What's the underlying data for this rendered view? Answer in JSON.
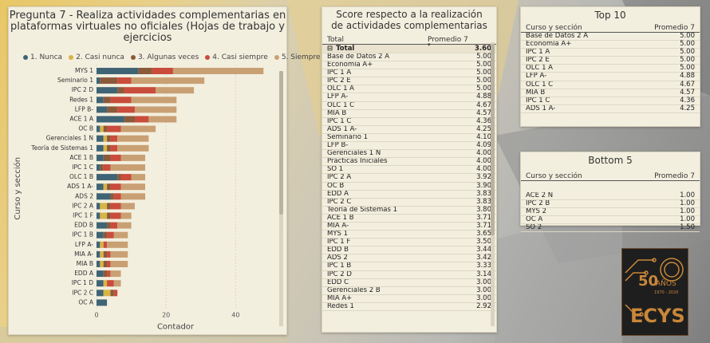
{
  "chart_data": {
    "type": "bar",
    "title": "Pregunta 7 - Realiza actividades complementarias en plataformas virtuales no oficiales (Hojas de trabajo y ejercicios",
    "xlabel": "Contador",
    "ylabel": "Curso y sección",
    "xticks": [
      "0",
      "20",
      "40"
    ],
    "xlim": [
      0,
      50
    ],
    "stacked": true,
    "legend_position": "top",
    "categories": [
      "MYS 1",
      "Seminario 1",
      "IPC 2 D",
      "Redes 1",
      "LFP B-",
      "ACE 1 A",
      "OC B",
      "Gerenciales 1 N",
      "Teoría de Sistemas 1",
      "ACE 1 B",
      "IPC 1 C",
      "OLC 1 B",
      "ADS 1 A-",
      "ADS 2",
      "IPC 2 A",
      "IPC 1 F",
      "EDD B",
      "IPC 1 B",
      "LFP A-",
      "MIA A-",
      "MIA B",
      "EDD A",
      "IPC 1 D",
      "IPC 2 C",
      "OC A"
    ],
    "series": [
      {
        "name": "1. Nunca",
        "color": "#3f6475",
        "values": [
          12,
          1,
          6,
          2,
          3,
          8,
          1,
          2,
          2,
          2,
          1,
          6,
          2,
          4,
          1,
          1,
          3,
          2,
          1,
          1,
          1,
          2,
          2,
          2,
          3
        ]
      },
      {
        "name": "2. Casi nunca",
        "color": "#d8b445",
        "values": [
          0,
          0,
          0,
          0,
          0,
          0,
          1,
          1,
          1,
          0,
          0,
          0,
          1,
          0,
          2,
          2,
          0,
          0,
          1,
          1,
          1,
          0,
          1,
          2,
          0
        ]
      },
      {
        "name": "3. Algunas veces",
        "color": "#8a5a3a",
        "values": [
          4,
          5,
          2,
          2,
          3,
          3,
          1,
          1,
          1,
          2,
          1,
          1,
          1,
          1,
          1,
          1,
          1,
          1,
          0,
          1,
          1,
          1,
          0,
          1,
          0
        ]
      },
      {
        "name": "4. Casi siempre",
        "color": "#c94c3c",
        "values": [
          6,
          4,
          9,
          6,
          5,
          4,
          4,
          2,
          2,
          3,
          2,
          3,
          3,
          2,
          3,
          3,
          2,
          2,
          1,
          1,
          1,
          1,
          2,
          1,
          0
        ]
      },
      {
        "name": "5. Siempre",
        "color": "#c9a074",
        "values": [
          26,
          21,
          11,
          13,
          12,
          8,
          10,
          9,
          9,
          7,
          10,
          4,
          7,
          7,
          4,
          3,
          4,
          4,
          6,
          5,
          5,
          3,
          2,
          0,
          0
        ]
      }
    ]
  },
  "table_main": {
    "title": "Score respecto a la realización de actividades complementarias",
    "col1": "Total",
    "col2": "Promedio 7",
    "sort_icon": "▾",
    "collapse_icon": "⊟",
    "total_label": "Total",
    "total_value": "3.60",
    "rows": [
      {
        "name": "Base de Datos 2 A",
        "value": "5.00"
      },
      {
        "name": "Economía A+",
        "value": "5.00"
      },
      {
        "name": "IPC 1 A",
        "value": "5.00"
      },
      {
        "name": "IPC 2 E",
        "value": "5.00"
      },
      {
        "name": "OLC 1 A",
        "value": "5.00"
      },
      {
        "name": "LFP A-",
        "value": "4.88"
      },
      {
        "name": "OLC 1 C",
        "value": "4.67"
      },
      {
        "name": "MIA B",
        "value": "4.57"
      },
      {
        "name": "IPC 1 C",
        "value": "4.36"
      },
      {
        "name": "ADS 1 A-",
        "value": "4.25"
      },
      {
        "name": "Seminario 1",
        "value": "4.10"
      },
      {
        "name": "LFP B-",
        "value": "4.09"
      },
      {
        "name": "Gerenciales 1 N",
        "value": "4.00"
      },
      {
        "name": "Prácticas Iniciales",
        "value": "4.00"
      },
      {
        "name": "SO 1",
        "value": "4.00"
      },
      {
        "name": "IPC 2 A",
        "value": "3.92"
      },
      {
        "name": "OC B",
        "value": "3.90"
      },
      {
        "name": "EDD A",
        "value": "3.83"
      },
      {
        "name": "IPC 2 C",
        "value": "3.83"
      },
      {
        "name": "Teoría de Sistemas 1",
        "value": "3.80"
      },
      {
        "name": "ACE 1 B",
        "value": "3.71"
      },
      {
        "name": "MIA A-",
        "value": "3.71"
      },
      {
        "name": "MYS 1",
        "value": "3.65"
      },
      {
        "name": "IPC 1 F",
        "value": "3.50"
      },
      {
        "name": "EDD B",
        "value": "3.44"
      },
      {
        "name": "ADS 2",
        "value": "3.42"
      },
      {
        "name": "IPC 1 B",
        "value": "3.33"
      },
      {
        "name": "IPC 2 D",
        "value": "3.14"
      },
      {
        "name": "EDD C",
        "value": "3.00"
      },
      {
        "name": "Gerenciales 2 B",
        "value": "3.00"
      },
      {
        "name": "MIA A+",
        "value": "3.00"
      },
      {
        "name": "Redes 1",
        "value": "2.92"
      }
    ]
  },
  "top10": {
    "title": "Top 10",
    "col1": "Curso y sección",
    "col2": "Promedio 7",
    "rows": [
      {
        "name": "Base de Datos 2 A",
        "value": "5.00"
      },
      {
        "name": "Economía A+",
        "value": "5.00"
      },
      {
        "name": "IPC 1 A",
        "value": "5.00"
      },
      {
        "name": "IPC 2 E",
        "value": "5.00"
      },
      {
        "name": "OLC 1 A",
        "value": "5.00"
      },
      {
        "name": "LFP A-",
        "value": "4.88"
      },
      {
        "name": "OLC 1 C",
        "value": "4.67"
      },
      {
        "name": "MIA B",
        "value": "4.57"
      },
      {
        "name": "IPC 1 C",
        "value": "4.36"
      },
      {
        "name": "ADS 1 A-",
        "value": "4.25"
      }
    ]
  },
  "bottom5": {
    "title": "Bottom 5",
    "col1": "Curso y sección",
    "col2": "Promedio 7",
    "rows": [
      {
        "name": "ACE 2 N",
        "value": "1.00"
      },
      {
        "name": "IPC 2 B",
        "value": "1.00"
      },
      {
        "name": "MYS 2",
        "value": "1.00"
      },
      {
        "name": "OC A",
        "value": "1.00"
      },
      {
        "name": "SO 2",
        "value": "1.50"
      }
    ]
  },
  "logo": {
    "text": "ECYS",
    "years": "AÑOS",
    "years_number": "50",
    "years_range": "1970 - 2020",
    "colors": {
      "gold": "#c9873a",
      "dark": "#1e1e1e"
    }
  }
}
